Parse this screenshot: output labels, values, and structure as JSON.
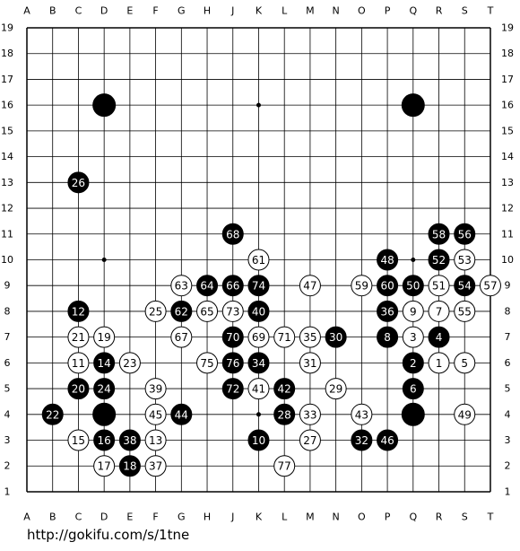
{
  "columns": [
    "A",
    "B",
    "C",
    "D",
    "E",
    "F",
    "G",
    "H",
    "J",
    "K",
    "L",
    "M",
    "N",
    "O",
    "P",
    "Q",
    "R",
    "S",
    "T"
  ],
  "rows": [
    19,
    18,
    17,
    16,
    15,
    14,
    13,
    12,
    11,
    10,
    9,
    8,
    7,
    6,
    5,
    4,
    3,
    2,
    1
  ],
  "stones": [
    {
      "col": "D",
      "row": 16,
      "color": "black"
    },
    {
      "col": "Q",
      "row": 16,
      "color": "black"
    },
    {
      "col": "D",
      "row": 4,
      "color": "black"
    },
    {
      "col": "Q",
      "row": 4,
      "color": "black"
    },
    {
      "col": "C",
      "row": 13,
      "color": "black",
      "label": "26"
    },
    {
      "col": "J",
      "row": 11,
      "color": "black",
      "label": "68"
    },
    {
      "col": "R",
      "row": 11,
      "color": "black",
      "label": "58"
    },
    {
      "col": "S",
      "row": 11,
      "color": "black",
      "label": "56"
    },
    {
      "col": "K",
      "row": 10,
      "color": "white",
      "label": "61"
    },
    {
      "col": "P",
      "row": 10,
      "color": "black",
      "label": "48"
    },
    {
      "col": "R",
      "row": 10,
      "color": "black",
      "label": "52"
    },
    {
      "col": "S",
      "row": 10,
      "color": "white",
      "label": "53"
    },
    {
      "col": "G",
      "row": 9,
      "color": "white",
      "label": "63"
    },
    {
      "col": "H",
      "row": 9,
      "color": "black",
      "label": "64"
    },
    {
      "col": "J",
      "row": 9,
      "color": "black",
      "label": "66"
    },
    {
      "col": "K",
      "row": 9,
      "color": "black",
      "label": "74"
    },
    {
      "col": "M",
      "row": 9,
      "color": "white",
      "label": "47"
    },
    {
      "col": "O",
      "row": 9,
      "color": "white",
      "label": "59"
    },
    {
      "col": "P",
      "row": 9,
      "color": "black",
      "label": "60"
    },
    {
      "col": "Q",
      "row": 9,
      "color": "black",
      "label": "50"
    },
    {
      "col": "R",
      "row": 9,
      "color": "white",
      "label": "51"
    },
    {
      "col": "S",
      "row": 9,
      "color": "black",
      "label": "54"
    },
    {
      "col": "T",
      "row": 9,
      "color": "white",
      "label": "57"
    },
    {
      "col": "C",
      "row": 8,
      "color": "black",
      "label": "12"
    },
    {
      "col": "F",
      "row": 8,
      "color": "white",
      "label": "25"
    },
    {
      "col": "G",
      "row": 8,
      "color": "black",
      "label": "62"
    },
    {
      "col": "H",
      "row": 8,
      "color": "white",
      "label": "65"
    },
    {
      "col": "J",
      "row": 8,
      "color": "white",
      "label": "73"
    },
    {
      "col": "K",
      "row": 8,
      "color": "black",
      "label": "40"
    },
    {
      "col": "P",
      "row": 8,
      "color": "black",
      "label": "36"
    },
    {
      "col": "Q",
      "row": 8,
      "color": "white",
      "label": "9"
    },
    {
      "col": "R",
      "row": 8,
      "color": "white",
      "label": "7"
    },
    {
      "col": "S",
      "row": 8,
      "color": "white",
      "label": "55"
    },
    {
      "col": "C",
      "row": 7,
      "color": "white",
      "label": "21"
    },
    {
      "col": "D",
      "row": 7,
      "color": "white",
      "label": "19"
    },
    {
      "col": "G",
      "row": 7,
      "color": "white",
      "label": "67"
    },
    {
      "col": "J",
      "row": 7,
      "color": "black",
      "label": "70"
    },
    {
      "col": "K",
      "row": 7,
      "color": "white",
      "label": "69"
    },
    {
      "col": "L",
      "row": 7,
      "color": "white",
      "label": "71"
    },
    {
      "col": "M",
      "row": 7,
      "color": "white",
      "label": "35"
    },
    {
      "col": "N",
      "row": 7,
      "color": "black",
      "label": "30"
    },
    {
      "col": "P",
      "row": 7,
      "color": "black",
      "label": "8"
    },
    {
      "col": "Q",
      "row": 7,
      "color": "white",
      "label": "3"
    },
    {
      "col": "R",
      "row": 7,
      "color": "black",
      "label": "4"
    },
    {
      "col": "C",
      "row": 6,
      "color": "white",
      "label": "11"
    },
    {
      "col": "D",
      "row": 6,
      "color": "black",
      "label": "14"
    },
    {
      "col": "E",
      "row": 6,
      "color": "white",
      "label": "23"
    },
    {
      "col": "H",
      "row": 6,
      "color": "white",
      "label": "75"
    },
    {
      "col": "J",
      "row": 6,
      "color": "black",
      "label": "76"
    },
    {
      "col": "K",
      "row": 6,
      "color": "black",
      "label": "34"
    },
    {
      "col": "M",
      "row": 6,
      "color": "white",
      "label": "31"
    },
    {
      "col": "Q",
      "row": 6,
      "color": "black",
      "label": "2"
    },
    {
      "col": "R",
      "row": 6,
      "color": "white",
      "label": "1"
    },
    {
      "col": "S",
      "row": 6,
      "color": "white",
      "label": "5"
    },
    {
      "col": "C",
      "row": 5,
      "color": "black",
      "label": "20"
    },
    {
      "col": "D",
      "row": 5,
      "color": "black",
      "label": "24"
    },
    {
      "col": "F",
      "row": 5,
      "color": "white",
      "label": "39"
    },
    {
      "col": "J",
      "row": 5,
      "color": "black",
      "label": "72"
    },
    {
      "col": "K",
      "row": 5,
      "color": "white",
      "label": "41"
    },
    {
      "col": "L",
      "row": 5,
      "color": "black",
      "label": "42"
    },
    {
      "col": "N",
      "row": 5,
      "color": "white",
      "label": "29"
    },
    {
      "col": "Q",
      "row": 5,
      "color": "black",
      "label": "6"
    },
    {
      "col": "B",
      "row": 4,
      "color": "black",
      "label": "22"
    },
    {
      "col": "F",
      "row": 4,
      "color": "white",
      "label": "45"
    },
    {
      "col": "G",
      "row": 4,
      "color": "black",
      "label": "44"
    },
    {
      "col": "L",
      "row": 4,
      "color": "black",
      "label": "28"
    },
    {
      "col": "M",
      "row": 4,
      "color": "white",
      "label": "33"
    },
    {
      "col": "O",
      "row": 4,
      "color": "white",
      "label": "43"
    },
    {
      "col": "S",
      "row": 4,
      "color": "white",
      "label": "49"
    },
    {
      "col": "C",
      "row": 3,
      "color": "white",
      "label": "15"
    },
    {
      "col": "D",
      "row": 3,
      "color": "black",
      "label": "16"
    },
    {
      "col": "E",
      "row": 3,
      "color": "black",
      "label": "38"
    },
    {
      "col": "F",
      "row": 3,
      "color": "white",
      "label": "13"
    },
    {
      "col": "K",
      "row": 3,
      "color": "black",
      "label": "10"
    },
    {
      "col": "M",
      "row": 3,
      "color": "white",
      "label": "27"
    },
    {
      "col": "O",
      "row": 3,
      "color": "black",
      "label": "32"
    },
    {
      "col": "P",
      "row": 3,
      "color": "black",
      "label": "46"
    },
    {
      "col": "D",
      "row": 2,
      "color": "white",
      "label": "17"
    },
    {
      "col": "E",
      "row": 2,
      "color": "black",
      "label": "18"
    },
    {
      "col": "F",
      "row": 2,
      "color": "white",
      "label": "37"
    },
    {
      "col": "L",
      "row": 2,
      "color": "white",
      "label": "77"
    }
  ],
  "footer": "http://gokifu.com/s/1tne"
}
